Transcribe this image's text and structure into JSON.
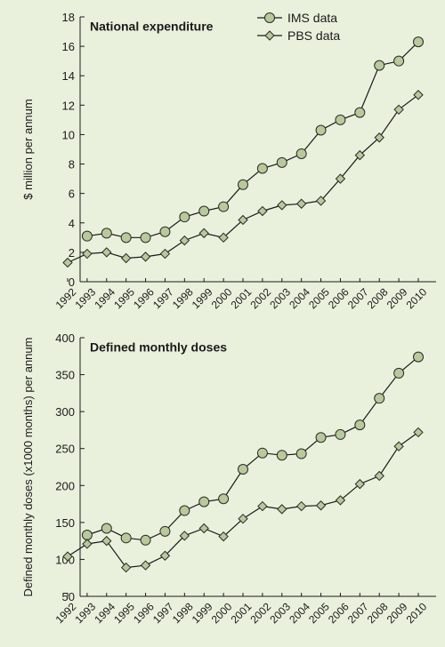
{
  "chart_data": [
    {
      "type": "line",
      "title": "National expenditure",
      "ylabel": "$ million per annum",
      "xlabel": "",
      "ylim": [
        0,
        18
      ],
      "yticks": [
        0,
        2,
        4,
        6,
        8,
        10,
        12,
        14,
        16,
        18
      ],
      "categories": [
        "1992",
        "1993",
        "1994",
        "1995",
        "1996",
        "1997",
        "1998",
        "1999",
        "2000",
        "2001",
        "2002",
        "2003",
        "2004",
        "2005",
        "2006",
        "2007",
        "2008",
        "2009",
        "2010"
      ],
      "legend": {
        "placement": "top-right",
        "entries": [
          "IMS data",
          "PBS data"
        ]
      },
      "series": [
        {
          "name": "IMS data",
          "marker": "circle",
          "values": [
            null,
            3.1,
            3.3,
            3.0,
            3.0,
            3.4,
            4.4,
            4.8,
            5.1,
            6.6,
            7.7,
            8.1,
            8.7,
            10.3,
            11.0,
            11.5,
            14.7,
            15.0,
            16.3
          ]
        },
        {
          "name": "PBS data",
          "marker": "diamond",
          "values": [
            1.3,
            1.9,
            2.0,
            1.6,
            1.7,
            1.9,
            2.8,
            3.3,
            3.0,
            4.2,
            4.8,
            5.2,
            5.3,
            5.5,
            7.0,
            8.6,
            9.8,
            11.7,
            12.7
          ]
        }
      ]
    },
    {
      "type": "line",
      "title": "Defined monthly doses",
      "ylabel": "Defined monthly doses (x1000 months) per annum",
      "xlabel": "",
      "ylim": [
        50,
        400
      ],
      "yticks": [
        50,
        100,
        150,
        200,
        250,
        300,
        350,
        400
      ],
      "categories": [
        "1992",
        "1993",
        "1994",
        "1995",
        "1996",
        "1997",
        "1998",
        "1999",
        "2000",
        "2001",
        "2002",
        "2003",
        "2004",
        "2005",
        "2006",
        "2007",
        "2008",
        "2009",
        "2010"
      ],
      "series": [
        {
          "name": "IMS data",
          "marker": "circle",
          "values": [
            null,
            133,
            142,
            129,
            126,
            138,
            166,
            178,
            182,
            222,
            244,
            241,
            243,
            265,
            269,
            282,
            318,
            352,
            374
          ]
        },
        {
          "name": "PBS data",
          "marker": "diamond",
          "values": [
            104,
            121,
            125,
            89,
            92,
            105,
            132,
            142,
            131,
            155,
            172,
            168,
            172,
            173,
            180,
            202,
            213,
            253,
            272
          ]
        }
      ]
    }
  ]
}
